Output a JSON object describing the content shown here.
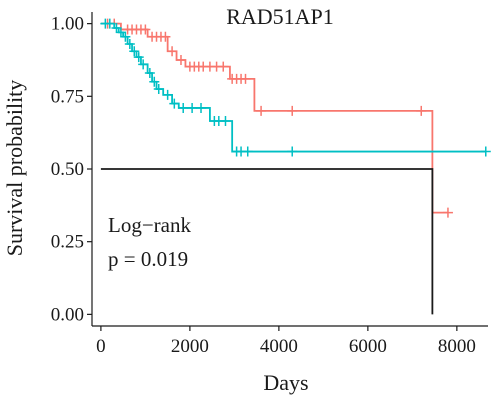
{
  "chart_data": {
    "type": "line",
    "title": "RAD51AP1",
    "xlabel": "Days",
    "ylabel": "Survival probability",
    "xlim": [
      -200,
      8700
    ],
    "ylim": [
      -0.04,
      1.04
    ],
    "x_ticks": [
      0,
      2000,
      4000,
      6000,
      8000
    ],
    "x_tick_labels": [
      "0",
      "2000",
      "4000",
      "6000",
      "8000"
    ],
    "y_ticks": [
      0.0,
      0.25,
      0.5,
      0.75,
      1.0
    ],
    "y_tick_labels": [
      "0.00",
      "0.25",
      "0.50",
      "0.75",
      "1.00"
    ],
    "grid": false,
    "annotation": {
      "line1": "Log−rank",
      "line2": "p = 0.019"
    },
    "median_line": {
      "y": 0.5,
      "x_end": 7450
    },
    "series": [
      {
        "color": "#F8766D",
        "steps": [
          [
            0,
            1.0
          ],
          [
            450,
            0.98
          ],
          [
            1050,
            0.955
          ],
          [
            1500,
            0.905
          ],
          [
            1700,
            0.875
          ],
          [
            1900,
            0.852
          ],
          [
            2900,
            0.81
          ],
          [
            3450,
            0.7
          ],
          [
            7450,
            0.35
          ]
        ],
        "end_x": 7800,
        "censored": [
          [
            150,
            1.0
          ],
          [
            300,
            1.0
          ],
          [
            600,
            0.98
          ],
          [
            700,
            0.98
          ],
          [
            800,
            0.98
          ],
          [
            900,
            0.98
          ],
          [
            1000,
            0.98
          ],
          [
            1150,
            0.955
          ],
          [
            1250,
            0.955
          ],
          [
            1350,
            0.955
          ],
          [
            1450,
            0.955
          ],
          [
            1600,
            0.905
          ],
          [
            1800,
            0.875
          ],
          [
            2000,
            0.852
          ],
          [
            2100,
            0.852
          ],
          [
            2200,
            0.852
          ],
          [
            2300,
            0.852
          ],
          [
            2450,
            0.852
          ],
          [
            2600,
            0.852
          ],
          [
            2750,
            0.852
          ],
          [
            2950,
            0.81
          ],
          [
            3050,
            0.81
          ],
          [
            3150,
            0.81
          ],
          [
            3250,
            0.81
          ],
          [
            3600,
            0.7
          ],
          [
            4300,
            0.7
          ],
          [
            7200,
            0.7
          ],
          [
            7800,
            0.35
          ]
        ]
      },
      {
        "color": "#00BFC4",
        "steps": [
          [
            0,
            1.0
          ],
          [
            300,
            0.985
          ],
          [
            400,
            0.97
          ],
          [
            500,
            0.955
          ],
          [
            600,
            0.93
          ],
          [
            700,
            0.905
          ],
          [
            800,
            0.885
          ],
          [
            900,
            0.86
          ],
          [
            1050,
            0.83
          ],
          [
            1150,
            0.8
          ],
          [
            1250,
            0.775
          ],
          [
            1400,
            0.755
          ],
          [
            1600,
            0.725
          ],
          [
            1750,
            0.71
          ],
          [
            2450,
            0.665
          ],
          [
            2950,
            0.56
          ]
        ],
        "end_x": 8650,
        "censored": [
          [
            100,
            1.0
          ],
          [
            200,
            1.0
          ],
          [
            350,
            0.985
          ],
          [
            450,
            0.97
          ],
          [
            550,
            0.955
          ],
          [
            650,
            0.93
          ],
          [
            750,
            0.905
          ],
          [
            850,
            0.885
          ],
          [
            950,
            0.86
          ],
          [
            1100,
            0.83
          ],
          [
            1200,
            0.8
          ],
          [
            1300,
            0.775
          ],
          [
            1500,
            0.755
          ],
          [
            1650,
            0.725
          ],
          [
            1850,
            0.71
          ],
          [
            2050,
            0.71
          ],
          [
            2250,
            0.71
          ],
          [
            2550,
            0.665
          ],
          [
            2650,
            0.665
          ],
          [
            2800,
            0.665
          ],
          [
            3050,
            0.56
          ],
          [
            3150,
            0.56
          ],
          [
            3300,
            0.56
          ],
          [
            4300,
            0.56
          ],
          [
            8650,
            0.56
          ]
        ]
      }
    ]
  }
}
